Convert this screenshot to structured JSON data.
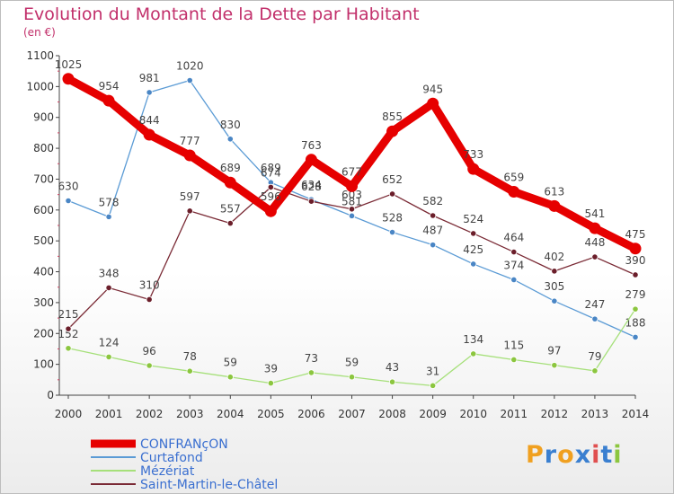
{
  "title": "Evolution du Montant de la Dette par Habitant",
  "subtitle": "(en €)",
  "logo_letters": [
    "P",
    "r",
    "o",
    "x",
    "i",
    "t",
    "i"
  ],
  "logo_colors": [
    "#f0a020",
    "#3a7fd0",
    "#f0a020",
    "#3a7fd0",
    "#e05050",
    "#3a7fd0",
    "#8cc63f"
  ],
  "chart_data": {
    "type": "line",
    "x": [
      "2000",
      "2001",
      "2002",
      "2003",
      "2004",
      "2005",
      "2006",
      "2007",
      "2008",
      "2009",
      "2010",
      "2011",
      "2012",
      "2013",
      "2014"
    ],
    "ylim": [
      0,
      1100
    ],
    "yticks": [
      0,
      100,
      200,
      300,
      400,
      500,
      600,
      700,
      800,
      900,
      1000,
      1100
    ],
    "grid": false,
    "legend_position": "bottom-left",
    "series": [
      {
        "name": "CONFRANçON",
        "color": "#e60000",
        "emphasis": true,
        "values": [
          1025,
          954,
          844,
          777,
          689,
          596,
          763,
          677,
          855,
          945,
          733,
          659,
          613,
          541,
          475
        ]
      },
      {
        "name": "Curtafond",
        "color": "#5b9bd5",
        "marker": "#4a86c5",
        "values": [
          630,
          578,
          981,
          1020,
          830,
          689,
          634,
          581,
          528,
          487,
          425,
          374,
          305,
          247,
          188
        ]
      },
      {
        "name": "Mézériat",
        "color": "#a6e07a",
        "marker": "#8cc63f",
        "values": [
          152,
          124,
          96,
          78,
          59,
          39,
          73,
          59,
          43,
          31,
          134,
          115,
          97,
          79,
          279
        ]
      },
      {
        "name": "Saint-Martin-le-Châtel",
        "color": "#7a2a35",
        "marker": "#6b1e2a",
        "values": [
          215,
          348,
          310,
          597,
          557,
          674,
          628,
          603,
          652,
          582,
          524,
          464,
          402,
          448,
          390
        ]
      }
    ]
  }
}
